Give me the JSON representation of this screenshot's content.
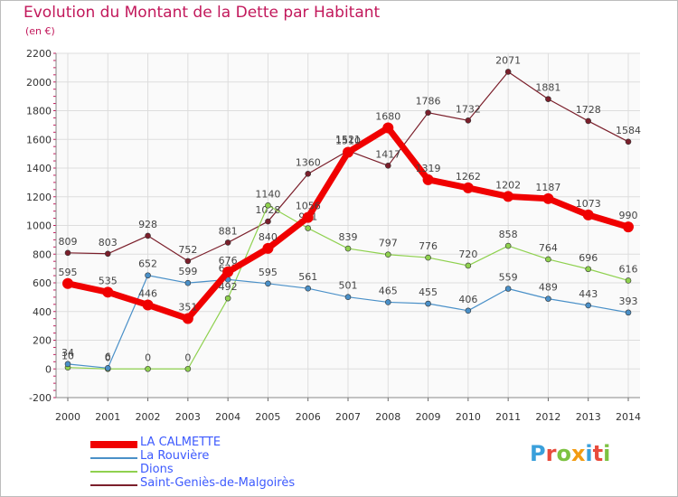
{
  "header": {
    "title": "Evolution du Montant de la Dette par Habitant",
    "unit": "(en €)"
  },
  "logo": {
    "text": "Proxiti",
    "letters": [
      {
        "ch": "P",
        "color": "#3aa0db"
      },
      {
        "ch": "r",
        "color": "#e84b3c"
      },
      {
        "ch": "o",
        "color": "#7dc242"
      },
      {
        "ch": "x",
        "color": "#f39c12"
      },
      {
        "ch": "i",
        "color": "#3aa0db"
      },
      {
        "ch": "t",
        "color": "#e84b3c"
      },
      {
        "ch": "i",
        "color": "#7dc242"
      }
    ]
  },
  "chart_data": {
    "type": "line",
    "title": "Evolution du Montant de la Dette par Habitant",
    "ylabel": "(en €)",
    "x": [
      2000,
      2001,
      2002,
      2003,
      2004,
      2005,
      2006,
      2007,
      2008,
      2009,
      2010,
      2011,
      2012,
      2013,
      2014
    ],
    "ylim": [
      -200,
      2200
    ],
    "yticks": [
      -200,
      0,
      200,
      400,
      600,
      800,
      1000,
      1200,
      1400,
      1600,
      1800,
      2000,
      2200
    ],
    "grid": true,
    "legend_position": "bottom",
    "series": [
      {
        "name": "Saint-Geniès-de-Malgoirès",
        "color": "#7b1f2b",
        "width": 1.2,
        "marker": 3,
        "values": [
          809,
          803,
          928,
          752,
          881,
          1028,
          1360,
          1521,
          1417,
          1786,
          1732,
          2071,
          1881,
          1728,
          1584
        ],
        "labels": [
          "809",
          "803",
          "928",
          "752",
          "881",
          "1028",
          "1360",
          "1521",
          "1417",
          "1786",
          "1732",
          "2071",
          "1881",
          "1728",
          "1584"
        ]
      },
      {
        "name": "Dions",
        "color": "#8fd14f",
        "width": 1.2,
        "marker": 3,
        "values": [
          10,
          0,
          0,
          0,
          492,
          1140,
          981,
          839,
          797,
          776,
          720,
          858,
          764,
          696,
          616
        ],
        "labels": [
          "10",
          "0",
          "0",
          "0",
          "492",
          "1140",
          "981",
          "839",
          "797",
          "776",
          "720",
          "858",
          "764",
          "696",
          "616"
        ]
      },
      {
        "name": "La Rouvière",
        "color": "#4a90c8",
        "width": 1.2,
        "marker": 3,
        "values": [
          34,
          6,
          652,
          599,
          623,
          595,
          561,
          501,
          465,
          455,
          406,
          559,
          489,
          443,
          393
        ],
        "labels": [
          "34",
          "6",
          "652",
          "599",
          "623",
          "595",
          "561",
          "501",
          "465",
          "455",
          "406",
          "559",
          "489",
          "443",
          "393"
        ]
      },
      {
        "name": "LA CALMETTE",
        "color": "#f00000",
        "width": 7,
        "marker": 6,
        "values": [
          595,
          535,
          446,
          351,
          676,
          840,
          1056,
          1510,
          1680,
          1319,
          1262,
          1202,
          1187,
          1073,
          990
        ],
        "labels": [
          "595",
          "535",
          "446",
          "351",
          "676",
          "840",
          "1056",
          "1510",
          "1680",
          "1319",
          "1262",
          "1202",
          "1187",
          "1073",
          "990"
        ]
      }
    ]
  }
}
